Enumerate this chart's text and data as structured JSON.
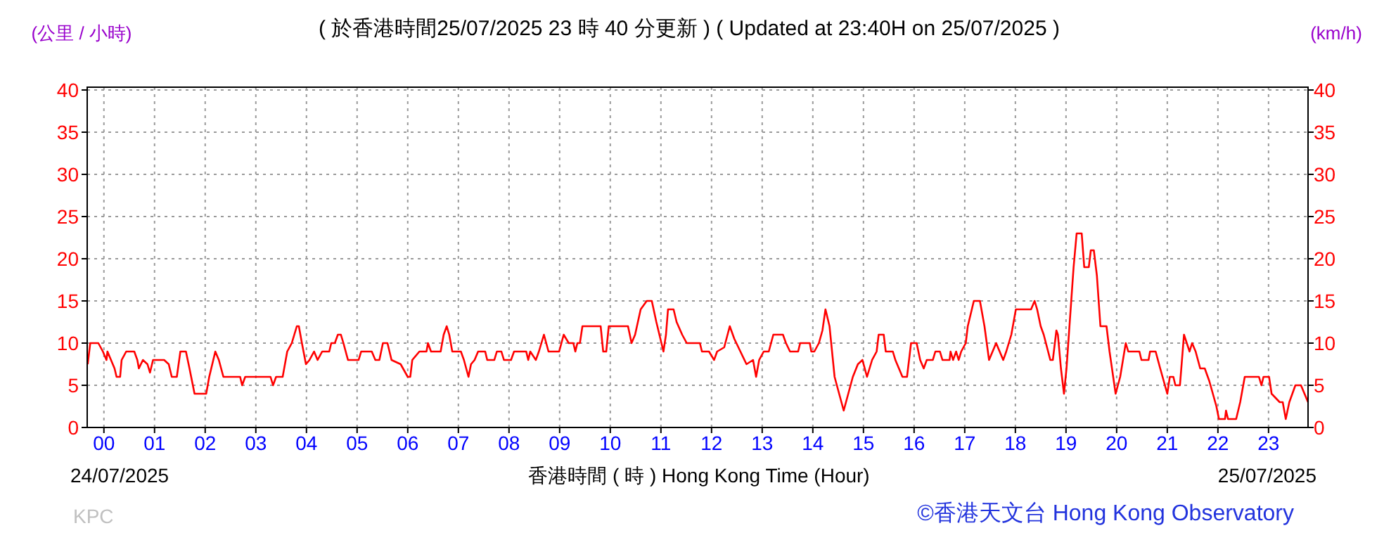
{
  "chart_data": {
    "type": "step",
    "title": "( 於香港時間25/07/2025 23 時 40 分更新 ) ( Updated at 23:40H on 25/07/2025 )",
    "xlabel": "香港時間 ( 時 ) Hong Kong Time (Hour)",
    "ylabel": "(公里 / 小時)",
    "y2label": "(km/h)",
    "annotations": [
      "24/07/2025",
      "25/07/2025",
      "KPC",
      "©香港天文台 Hong Kong Observatory"
    ],
    "xlim": [
      -0.33,
      23.78
    ],
    "xticks": [
      {
        "value": 0,
        "label": "00"
      },
      {
        "value": 1,
        "label": "01"
      },
      {
        "value": 2,
        "label": "02"
      },
      {
        "value": 3,
        "label": "03"
      },
      {
        "value": 4,
        "label": "04"
      },
      {
        "value": 5,
        "label": "05"
      },
      {
        "value": 6,
        "label": "06"
      },
      {
        "value": 7,
        "label": "07"
      },
      {
        "value": 8,
        "label": "08"
      },
      {
        "value": 9,
        "label": "09"
      },
      10,
      11,
      12,
      13,
      14,
      15,
      16,
      17,
      18,
      19,
      20,
      21,
      22,
      23
    ],
    "ylim": [
      0,
      40
    ],
    "yticks": [
      0,
      5,
      10,
      15,
      20,
      25,
      30,
      35,
      40
    ],
    "y2lim": [
      0,
      40
    ],
    "y2ticks": [
      0,
      5,
      10,
      15,
      20,
      25,
      30,
      35,
      40
    ],
    "grid": true,
    "series": [
      {
        "color": "#ff0000",
        "x": [
          -0.32,
          -0.27,
          -0.11,
          -0.02,
          0.05,
          0.07,
          0.14,
          0.21,
          0.25,
          0.32,
          0.35,
          0.44,
          0.6,
          0.66,
          0.69,
          0.77,
          0.86,
          0.91,
          0.97,
          1.19,
          1.28,
          1.34,
          1.44,
          1.51,
          1.62,
          1.69,
          1.79,
          2.02,
          2.08,
          2.2,
          2.27,
          2.36,
          2.69,
          2.73,
          2.79,
          3.29,
          3.34,
          3.4,
          3.53,
          3.62,
          3.71,
          3.81,
          3.85,
          3.91,
          3.99,
          4.06,
          4.15,
          4.22,
          4.31,
          4.45,
          4.49,
          4.56,
          4.62,
          4.68,
          4.73,
          4.82,
          5.03,
          5.08,
          5.29,
          5.36,
          5.44,
          5.51,
          5.6,
          5.68,
          5.86,
          6.0,
          6.05,
          6.09,
          6.23,
          6.37,
          6.4,
          6.46,
          6.65,
          6.71,
          6.77,
          6.82,
          6.88,
          7.05,
          7.11,
          7.2,
          7.25,
          7.32,
          7.39,
          7.53,
          7.57,
          7.71,
          7.76,
          7.85,
          7.9,
          8.04,
          8.1,
          8.34,
          8.38,
          8.42,
          8.53,
          8.59,
          8.69,
          8.78,
          8.99,
          9.08,
          9.18,
          9.27,
          9.31,
          9.35,
          9.4,
          9.45,
          9.81,
          9.86,
          9.92,
          9.97,
          10.35,
          10.42,
          10.49,
          10.6,
          10.72,
          10.82,
          10.91,
          11.05,
          11.1,
          11.14,
          11.25,
          11.31,
          11.42,
          11.51,
          11.77,
          11.81,
          11.95,
          12.05,
          12.11,
          12.25,
          12.36,
          12.45,
          12.57,
          12.69,
          12.82,
          12.88,
          12.94,
          13.03,
          13.13,
          13.22,
          13.41,
          13.47,
          13.55,
          13.71,
          13.75,
          13.94,
          13.97,
          14.03,
          14.12,
          14.19,
          14.25,
          14.33,
          14.43,
          14.52,
          14.61,
          14.7,
          14.79,
          14.89,
          14.98,
          15.07,
          15.17,
          15.26,
          15.3,
          15.4,
          15.44,
          15.58,
          15.63,
          15.77,
          15.86,
          15.94,
          16.05,
          16.12,
          16.19,
          16.25,
          16.37,
          16.42,
          16.51,
          16.56,
          16.7,
          16.72,
          16.77,
          16.83,
          16.88,
          16.93,
          17.02,
          17.06,
          17.18,
          17.3,
          17.39,
          17.48,
          17.55,
          17.62,
          17.69,
          17.76,
          17.82,
          17.92,
          18.01,
          18.31,
          18.38,
          18.43,
          18.5,
          18.56,
          18.69,
          18.74,
          18.81,
          18.84,
          18.9,
          18.96,
          19.01,
          19.08,
          19.15,
          19.21,
          19.31,
          19.36,
          19.45,
          19.49,
          19.55,
          19.61,
          19.68,
          19.8,
          19.86,
          19.98,
          20.07,
          20.18,
          20.23,
          20.45,
          20.49,
          20.63,
          20.66,
          20.77,
          20.86,
          21.0,
          21.05,
          21.12,
          21.16,
          21.25,
          21.33,
          21.44,
          21.49,
          21.56,
          21.65,
          21.74,
          21.83,
          21.97,
          22.02,
          22.14,
          22.16,
          22.2,
          22.36,
          22.44,
          22.53,
          22.81,
          22.86,
          22.9,
          23.01,
          23.06,
          23.22,
          23.28,
          23.34,
          23.41,
          23.53,
          23.64,
          23.78
        ],
        "values": [
          7.5,
          10,
          10,
          9,
          8,
          9,
          8,
          7,
          6,
          6,
          8,
          9,
          9,
          8,
          7,
          8,
          7.5,
          6.5,
          8,
          8,
          7.5,
          6,
          6,
          9,
          9,
          7,
          4,
          4,
          6,
          9,
          8,
          6,
          6,
          5,
          6,
          6,
          5,
          6,
          6,
          9,
          10,
          12,
          12,
          10,
          7.5,
          8,
          9,
          8,
          9,
          9,
          10,
          10,
          11,
          11,
          10,
          8,
          8,
          9,
          9,
          8,
          8,
          10,
          10,
          8,
          7.5,
          6,
          6,
          8,
          9,
          9,
          10,
          9,
          9,
          11,
          12,
          11,
          9,
          9,
          8,
          6,
          7.5,
          8,
          9,
          9,
          8,
          8,
          9,
          9,
          8,
          8,
          9,
          9,
          8,
          9,
          8,
          9,
          11,
          9,
          9,
          11,
          10,
          10,
          9,
          10,
          10,
          12,
          12,
          9,
          9,
          12,
          12,
          10,
          11,
          14,
          15,
          15,
          12.5,
          9,
          11,
          14,
          14,
          12.5,
          11,
          10,
          10,
          9,
          9,
          8,
          9,
          9.5,
          12,
          10.5,
          9,
          7.5,
          8,
          6,
          8,
          9,
          9,
          11,
          11,
          10,
          9,
          9,
          10,
          10,
          9,
          9,
          10,
          11.5,
          14,
          12,
          6,
          4,
          2,
          4,
          6,
          7.5,
          8,
          6,
          8,
          9,
          11,
          11,
          9,
          9,
          8,
          6,
          6,
          10,
          10,
          8,
          7,
          8,
          8,
          9,
          9,
          8,
          8,
          9,
          8,
          9,
          8,
          9,
          10,
          12,
          15,
          15,
          12,
          8,
          9,
          10,
          9,
          8,
          9,
          11,
          14,
          14,
          15,
          14,
          12,
          11,
          8,
          8,
          11.5,
          11,
          7,
          4,
          7,
          13,
          19,
          23,
          23,
          19,
          19,
          21,
          21,
          18,
          12,
          12,
          9,
          4,
          6,
          10,
          9,
          9,
          8,
          8,
          9,
          9,
          7,
          4,
          6,
          6,
          5,
          5,
          11,
          9,
          10,
          9,
          7,
          7,
          5.5,
          2.5,
          1,
          1,
          2,
          1,
          1,
          3,
          6,
          6,
          5,
          6,
          6,
          4,
          3,
          3,
          1,
          3,
          5,
          5,
          3
        ]
      }
    ]
  }
}
